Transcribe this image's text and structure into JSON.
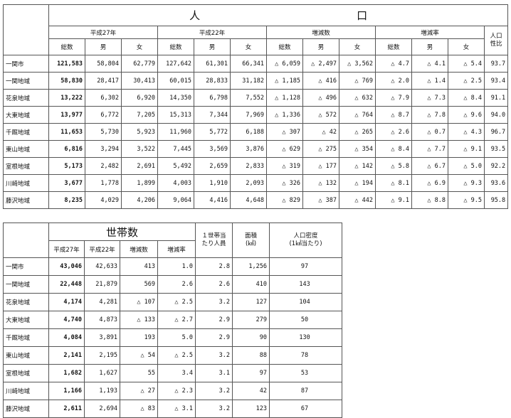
{
  "population_table": {
    "title_left": "人",
    "title_right": "口",
    "group_headers": [
      "平成27年",
      "平成22年",
      "増減数",
      "増減率"
    ],
    "sub_headers": [
      "総数",
      "男",
      "女",
      "総数",
      "男",
      "女",
      "総数",
      "男",
      "女",
      "総数",
      "男",
      "女"
    ],
    "ratio_header_line1": "人口",
    "ratio_header_line2": "性比",
    "rows": [
      {
        "name": "一関市",
        "cells": [
          "121,583",
          "58,804",
          "62,779",
          "127,642",
          "61,301",
          "66,341",
          "△ 6,059",
          "△ 2,497",
          "△ 3,562",
          "△ 4.7",
          "△ 4.1",
          "△ 5.4",
          "93.7"
        ]
      },
      {
        "name": "一関地域",
        "cells": [
          "58,830",
          "28,417",
          "30,413",
          "60,015",
          "28,833",
          "31,182",
          "△ 1,185",
          "△ 416",
          "△ 769",
          "△ 2.0",
          "△ 1.4",
          "△ 2.5",
          "93.4"
        ]
      },
      {
        "name": "花泉地域",
        "cells": [
          "13,222",
          "6,302",
          "6,920",
          "14,350",
          "6,798",
          "7,552",
          "△ 1,128",
          "△ 496",
          "△ 632",
          "△ 7.9",
          "△ 7.3",
          "△ 8.4",
          "91.1"
        ]
      },
      {
        "name": "大東地域",
        "cells": [
          "13,977",
          "6,772",
          "7,205",
          "15,313",
          "7,344",
          "7,969",
          "△ 1,336",
          "△ 572",
          "△ 764",
          "△ 8.7",
          "△ 7.8",
          "△ 9.6",
          "94.0"
        ]
      },
      {
        "name": "千厩地域",
        "cells": [
          "11,653",
          "5,730",
          "5,923",
          "11,960",
          "5,772",
          "6,188",
          "△ 307",
          "△ 42",
          "△ 265",
          "△ 2.6",
          "△ 0.7",
          "△ 4.3",
          "96.7"
        ]
      },
      {
        "name": "東山地域",
        "cells": [
          "6,816",
          "3,294",
          "3,522",
          "7,445",
          "3,569",
          "3,876",
          "△ 629",
          "△ 275",
          "△ 354",
          "△ 8.4",
          "△ 7.7",
          "△ 9.1",
          "93.5"
        ]
      },
      {
        "name": "室根地域",
        "cells": [
          "5,173",
          "2,482",
          "2,691",
          "5,492",
          "2,659",
          "2,833",
          "△ 319",
          "△ 177",
          "△ 142",
          "△ 5.8",
          "△ 6.7",
          "△ 5.0",
          "92.2"
        ]
      },
      {
        "name": "川崎地域",
        "cells": [
          "3,677",
          "1,778",
          "1,899",
          "4,003",
          "1,910",
          "2,093",
          "△ 326",
          "△ 132",
          "△ 194",
          "△ 8.1",
          "△ 6.9",
          "△ 9.3",
          "93.6"
        ]
      },
      {
        "name": "藤沢地域",
        "cells": [
          "8,235",
          "4,029",
          "4,206",
          "9,064",
          "4,416",
          "4,648",
          "△ 829",
          "△ 387",
          "△ 442",
          "△ 9.1",
          "△ 8.8",
          "△ 9.5",
          "95.8"
        ]
      }
    ]
  },
  "household_table": {
    "title": "世帯数",
    "sub_headers": [
      "平成27年",
      "平成22年",
      "増減数",
      "増減率"
    ],
    "per_household_header_line1": "１世帯当",
    "per_household_header_line2": "たり人員",
    "area_header_line1": "面積",
    "area_header_line2": "(㎢)",
    "density_header_line1": "人口密度",
    "density_header_line2": "(1㎢当たり)",
    "rows": [
      {
        "name": "一関市",
        "cells": [
          "43,046",
          "42,633",
          "413",
          "1.0",
          "2.8",
          "1,256",
          "97"
        ]
      },
      {
        "name": "一関地域",
        "cells": [
          "22,448",
          "21,879",
          "569",
          "2.6",
          "2.6",
          "410",
          "143"
        ]
      },
      {
        "name": "花泉地域",
        "cells": [
          "4,174",
          "4,281",
          "△ 107",
          "△ 2.5",
          "3.2",
          "127",
          "104"
        ]
      },
      {
        "name": "大東地域",
        "cells": [
          "4,740",
          "4,873",
          "△ 133",
          "△ 2.7",
          "2.9",
          "279",
          "50"
        ]
      },
      {
        "name": "千厩地域",
        "cells": [
          "4,084",
          "3,891",
          "193",
          "5.0",
          "2.9",
          "90",
          "130"
        ]
      },
      {
        "name": "東山地域",
        "cells": [
          "2,141",
          "2,195",
          "△ 54",
          "△ 2.5",
          "3.2",
          "88",
          "78"
        ]
      },
      {
        "name": "室根地域",
        "cells": [
          "1,682",
          "1,627",
          "55",
          "3.4",
          "3.1",
          "97",
          "53"
        ]
      },
      {
        "name": "川崎地域",
        "cells": [
          "1,166",
          "1,193",
          "△ 27",
          "△ 2.3",
          "3.2",
          "42",
          "87"
        ]
      },
      {
        "name": "藤沢地域",
        "cells": [
          "2,611",
          "2,694",
          "△ 83",
          "△ 3.1",
          "3.2",
          "123",
          "67"
        ]
      }
    ]
  }
}
